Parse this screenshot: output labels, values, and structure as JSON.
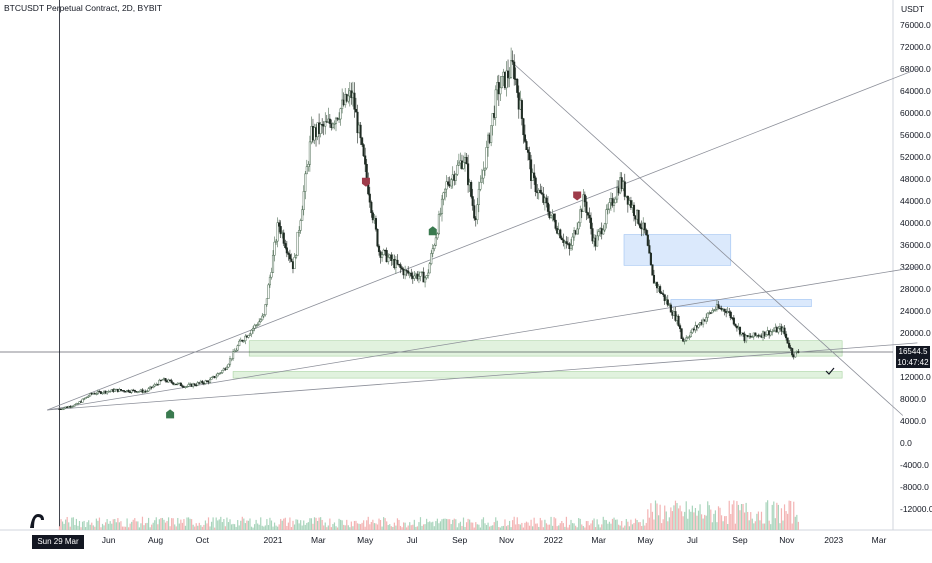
{
  "header": {
    "title": "BTCUSDT Perpetual Contract, 2D, BYBIT",
    "unit": "USDT"
  },
  "crosshair": {
    "date_label": "Sun 29 Mar '20"
  },
  "last_price": {
    "price": "16544.5",
    "countdown": "10:47:42"
  },
  "colors": {
    "up": "#4d6b53",
    "down": "#1e2a22",
    "zone_green": "#d7edd3",
    "zone_blue": "#cfe1fb",
    "vol_up": "#a8d4bb",
    "vol_down": "#f3b3b3",
    "line": "#8c8f99"
  },
  "chart_data": {
    "type": "candlestick",
    "price_axis": {
      "ticks": [
        "76000.0",
        "72000.0",
        "68000.0",
        "64000.0",
        "60000.0",
        "56000.0",
        "52000.0",
        "48000.0",
        "44000.0",
        "40000.0",
        "36000.0",
        "32000.0",
        "28000.0",
        "24000.0",
        "20000.0",
        "12000.0"
      ],
      "ylim": [
        6000,
        78000
      ]
    },
    "volume_axis": {
      "ticks": [
        "8000.0",
        "4000.0",
        "0.0",
        "-4000.0",
        "-8000.0",
        "-12000.0"
      ]
    },
    "time_axis": {
      "ticks": [
        "Jun",
        "Aug",
        "Oct",
        "2021",
        "Mar",
        "May",
        "Jul",
        "Sep",
        "Nov",
        "2022",
        "Mar",
        "May",
        "Jul",
        "Sep",
        "Nov",
        "2023",
        "Mar"
      ]
    },
    "price_path": [
      [
        "2020-03-29",
        6200
      ],
      [
        "2020-04-20",
        7000
      ],
      [
        "2020-05-10",
        9000
      ],
      [
        "2020-06-10",
        9600
      ],
      [
        "2020-07-20",
        9400
      ],
      [
        "2020-08-10",
        11500
      ],
      [
        "2020-09-10",
        10300
      ],
      [
        "2020-10-10",
        11300
      ],
      [
        "2020-10-30",
        13500
      ],
      [
        "2020-11-20",
        18500
      ],
      [
        "2020-12-20",
        23000
      ],
      [
        "2021-01-08",
        40000
      ],
      [
        "2021-01-28",
        32000
      ],
      [
        "2021-02-20",
        56000
      ],
      [
        "2021-03-15",
        58000
      ],
      [
        "2021-04-14",
        63500
      ],
      [
        "2021-05-19",
        35000
      ],
      [
        "2021-06-22",
        31000
      ],
      [
        "2021-07-20",
        30000
      ],
      [
        "2021-08-15",
        47000
      ],
      [
        "2021-09-07",
        52000
      ],
      [
        "2021-09-21",
        41000
      ],
      [
        "2021-10-20",
        64000
      ],
      [
        "2021-11-10",
        68500
      ],
      [
        "2021-12-04",
        48000
      ],
      [
        "2022-01-22",
        35000
      ],
      [
        "2022-02-10",
        44500
      ],
      [
        "2022-02-24",
        36000
      ],
      [
        "2022-03-29",
        47500
      ],
      [
        "2022-05-01",
        38000
      ],
      [
        "2022-05-10",
        30000
      ],
      [
        "2022-06-13",
        22000
      ],
      [
        "2022-06-18",
        18500
      ],
      [
        "2022-07-30",
        24500
      ],
      [
        "2022-08-15",
        24200
      ],
      [
        "2022-09-07",
        19000
      ],
      [
        "2022-10-26",
        20800
      ],
      [
        "2022-11-09",
        16000
      ],
      [
        "2022-11-16",
        16544.5
      ]
    ],
    "markers": [
      {
        "type": "buy",
        "date": "2020-08-20",
        "price": 5200
      },
      {
        "type": "sell",
        "date": "2021-05-02",
        "price": 47500
      },
      {
        "type": "buy",
        "date": "2021-07-28",
        "price": 38500
      },
      {
        "type": "sell",
        "date": "2022-02-01",
        "price": 45000
      }
    ],
    "zones": [
      {
        "color": "green",
        "from": "2020-12-01",
        "to": "2023-01-12",
        "price_low": 15800,
        "price_high": 18600
      },
      {
        "color": "green",
        "from": "2020-11-10",
        "to": "2023-01-12",
        "price_low": 11800,
        "price_high": 13000
      },
      {
        "color": "blue",
        "from": "2022-04-03",
        "to": "2022-08-20",
        "price_low": 32300,
        "price_high": 37900
      },
      {
        "color": "blue",
        "from": "2022-06-03",
        "to": "2022-12-03",
        "price_low": 24800,
        "price_high": 26100
      }
    ],
    "trendlines": [
      {
        "from": [
          "2020-03-13",
          6000
        ],
        "to": [
          "2023-04-20",
          68000
        ]
      },
      {
        "from": [
          "2020-03-13",
          6000
        ],
        "to": [
          "2023-04-20",
          32000
        ]
      },
      {
        "from": [
          "2020-03-13",
          6000
        ],
        "to": [
          "2023-04-20",
          18200
        ]
      },
      {
        "from": [
          "2021-11-10",
          69000
        ],
        "to": [
          "2023-04-01",
          5000
        ]
      }
    ],
    "grid": false,
    "legend": "none"
  }
}
